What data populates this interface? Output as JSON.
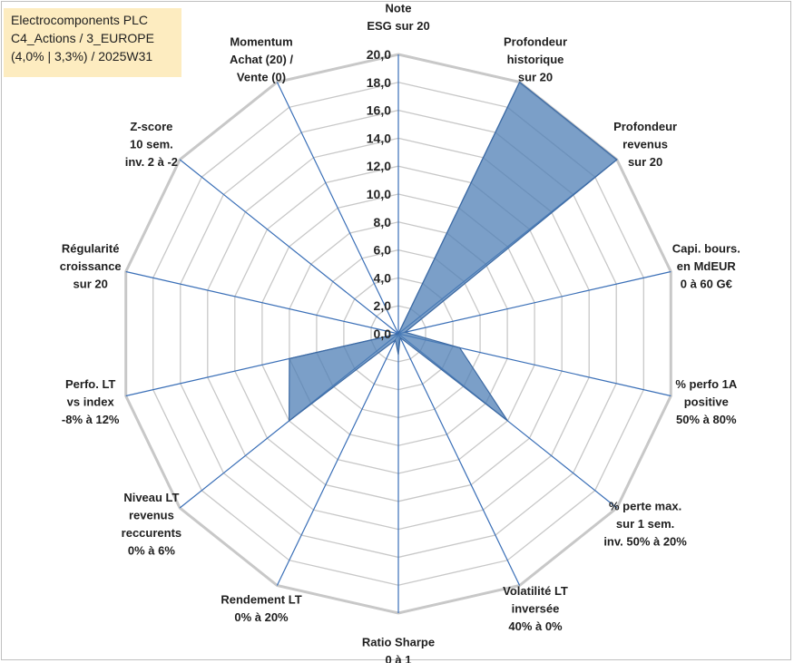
{
  "title": {
    "line1": "Electrocomponents PLC",
    "line2": "C4_Actions / 3_EUROPE",
    "line3": "(4,0% | 3,3%) / 2025W31"
  },
  "colors": {
    "grid": "#c8c8c8",
    "axis": "#3a6fb7",
    "fill": "#4f7fb5",
    "fill_opacity": 0.75,
    "title_bg": "#fdecc0"
  },
  "chart_data": {
    "type": "radar",
    "r_min": 0,
    "r_max": 20,
    "r_step": 2,
    "grid_levels": 10,
    "tick_labels": [
      "0,0",
      "2,0",
      "4,0",
      "6,0",
      "8,0",
      "10,0",
      "12,0",
      "14,0",
      "16,0",
      "18,0",
      "20,0"
    ],
    "axes": [
      [
        "Note",
        "ESG sur 20"
      ],
      [
        "Profondeur",
        "historique",
        "sur 20"
      ],
      [
        "Profondeur",
        "revenus",
        "sur 20"
      ],
      [
        "Capi. bours.",
        "en MdEUR",
        "0 à 60 G€"
      ],
      [
        "% perfo 1A",
        "positive",
        "50% à 80%"
      ],
      [
        "% perte max.",
        "sur 1 sem.",
        "inv. 50% à 20%"
      ],
      [
        "Volatilité LT",
        "inversée",
        "40% à 0%"
      ],
      [
        "Ratio Sharpe",
        "0 à 1"
      ],
      [
        "Rendement LT",
        "0% à 20%"
      ],
      [
        "Niveau LT",
        "revenus",
        "reccurents",
        "0% à 6%"
      ],
      [
        "Perfo. LT",
        "vs index",
        "-8% à 12%"
      ],
      [
        "Régularité",
        "croissance",
        "sur 20"
      ],
      [
        "Z-score",
        "10 sem.",
        "inv. 2 à -2"
      ],
      [
        "Momentum",
        "Achat (20) /",
        "Vente (0)"
      ]
    ],
    "values": [
      0,
      20,
      20,
      0.5,
      4.5,
      10,
      0.3,
      1.5,
      0.5,
      10,
      8,
      0,
      0,
      0
    ],
    "grid": true,
    "legend": "none"
  }
}
